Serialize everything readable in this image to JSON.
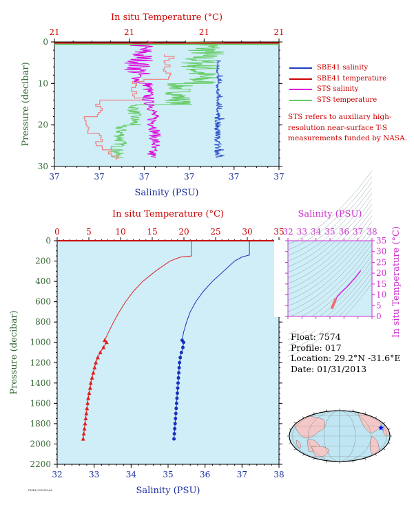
{
  "legend": [
    {
      "label": "SBE41 salinity",
      "color": "#1f3fbf"
    },
    {
      "label": "SBE41 temperature",
      "color": "#cc0000"
    },
    {
      "label": "STS salinity",
      "color": "#dd00dd"
    },
    {
      "label": "STS temperature",
      "color": "#66cc66"
    }
  ],
  "note": "STS refers to auxiliary high-resolution near-surface T-S measurements funded by NASA.",
  "float_info": {
    "float": "Float: 7574",
    "profile": "Profile: 017",
    "location": "Location: 29.2°N -31.6°E",
    "date": "Date: 01/31/2013"
  },
  "footer_text": "PMEL/UW/NOAA",
  "chart_data": [
    {
      "id": "near-surface-profile",
      "type": "line",
      "title": "",
      "top_axis_label": "In situ Temperature (°C)",
      "top_axis_ticks": [
        "21",
        "21",
        "21",
        "21"
      ],
      "bottom_axis_label": "Salinity (PSU)",
      "bottom_axis_ticks": [
        "37",
        "37",
        "37",
        "37",
        "37",
        "37"
      ],
      "ylabel": "Pressure (decibar)",
      "yticks": [
        0,
        10,
        20,
        30
      ],
      "ylim": [
        0,
        30
      ],
      "background": "#cfeef8",
      "series": [
        {
          "name": "SBE41 salinity",
          "color": "#1f3fbf",
          "note": "near-constant ~36.9 PSU, 5–28 dbar"
        },
        {
          "name": "SBE41 temperature",
          "color": "#cc0000",
          "note": "near-constant ~20.6 °C at surface"
        },
        {
          "name": "STS salinity",
          "color": "#dd00dd",
          "note": "noisy ~36.95 PSU, 0–28 dbar"
        },
        {
          "name": "STS temperature",
          "color": "#66cc66",
          "note": "noisy ~21 °C, 0–28 dbar"
        }
      ]
    },
    {
      "id": "full-profile",
      "type": "line",
      "title": "",
      "top_axis_label": "In situ Temperature (°C)",
      "top_axis_ticks": [
        "0",
        "5",
        "10",
        "15",
        "20",
        "25",
        "30",
        "35"
      ],
      "xlim_temperature": [
        0,
        35
      ],
      "bottom_axis_label": "Salinity (PSU)",
      "bottom_axis_ticks": [
        "32",
        "33",
        "34",
        "35",
        "36",
        "37",
        "38"
      ],
      "xlim_salinity": [
        32,
        38
      ],
      "ylabel": "Pressure (decibar)",
      "yticks": [
        0,
        200,
        400,
        600,
        800,
        1000,
        1200,
        1400,
        1600,
        1800,
        2000,
        2200
      ],
      "ylim": [
        0,
        2200
      ],
      "background": "#cfeef8",
      "series": [
        {
          "name": "Temperature",
          "axis": "temperature",
          "color": "#e02020",
          "marker": "triangle",
          "pressure": [
            0,
            150,
            160,
            200,
            300,
            400,
            500,
            600,
            700,
            800,
            900,
            980,
            1000,
            1050,
            1100,
            1150,
            1200,
            1250,
            1300,
            1350,
            1400,
            1450,
            1500,
            1550,
            1600,
            1650,
            1700,
            1750,
            1800,
            1850,
            1900,
            1950
          ],
          "values": [
            21.2,
            21.2,
            19.5,
            17.8,
            15.5,
            13.5,
            12.0,
            10.8,
            9.8,
            8.9,
            8.1,
            7.5,
            7.8,
            7.3,
            6.8,
            6.4,
            6.1,
            5.9,
            5.7,
            5.5,
            5.3,
            5.2,
            5.05,
            4.9,
            4.8,
            4.7,
            4.6,
            4.5,
            4.4,
            4.3,
            4.2,
            4.1
          ],
          "markers_from_pressure": 980
        },
        {
          "name": "Salinity",
          "axis": "salinity",
          "color": "#1a2fbf",
          "marker": "circle",
          "pressure": [
            0,
            140,
            160,
            200,
            300,
            400,
            500,
            600,
            700,
            800,
            900,
            980,
            1000,
            1050,
            1100,
            1150,
            1200,
            1250,
            1300,
            1350,
            1400,
            1450,
            1500,
            1550,
            1600,
            1650,
            1700,
            1750,
            1800,
            1850,
            1900,
            1950
          ],
          "values": [
            37.2,
            37.2,
            37.0,
            36.8,
            36.5,
            36.2,
            35.95,
            35.75,
            35.6,
            35.5,
            35.42,
            35.38,
            35.42,
            35.4,
            35.36,
            35.33,
            35.31,
            35.3,
            35.29,
            35.28,
            35.27,
            35.26,
            35.25,
            35.24,
            35.23,
            35.22,
            35.21,
            35.2,
            35.19,
            35.18,
            35.17,
            35.16
          ],
          "markers_from_pressure": 980
        }
      ]
    },
    {
      "id": "ts-diagram",
      "type": "line",
      "title": "",
      "top_axis_label": "Salinity (PSU)",
      "top_axis_ticks": [
        "32",
        "33",
        "34",
        "35",
        "36",
        "37",
        "38"
      ],
      "xlim": [
        32,
        38
      ],
      "right_axis_label": "In situ Temperature (°C)",
      "right_axis_ticks": [
        "0",
        "5",
        "10",
        "15",
        "20",
        "25",
        "30",
        "35"
      ],
      "ylim": [
        0,
        35
      ],
      "series": [
        {
          "name": "T-S",
          "color": "#dd00dd",
          "x": [
            35.16,
            35.2,
            35.25,
            35.3,
            35.38,
            35.5,
            35.75,
            36.2,
            36.8,
            37.2
          ],
          "y": [
            4.1,
            4.5,
            5.05,
            5.9,
            7.5,
            8.9,
            10.8,
            13.5,
            17.8,
            21.2
          ]
        }
      ]
    },
    {
      "id": "location-map",
      "type": "map",
      "marker": {
        "lat": 29.2,
        "lon": -31.6
      }
    }
  ]
}
